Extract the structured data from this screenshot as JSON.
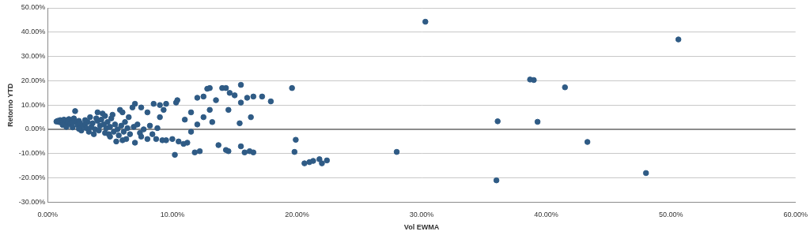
{
  "chart_data": {
    "type": "scatter",
    "x_label": "Vol EWMA",
    "y_label": "Retorno YTD",
    "color": "#2f5b85",
    "marker": "circle",
    "grid": true,
    "xlim": [
      0,
      60
    ],
    "ylim": [
      -30,
      50
    ],
    "xticks": [
      {
        "value": 0,
        "label": "0.00%"
      },
      {
        "value": 10,
        "label": "10.00%"
      },
      {
        "value": 20,
        "label": "20.00%"
      },
      {
        "value": 30,
        "label": "30.00%"
      },
      {
        "value": 40,
        "label": "40.00%"
      },
      {
        "value": 50,
        "label": "50.00%"
      },
      {
        "value": 60,
        "label": "60.00%"
      }
    ],
    "yticks": [
      {
        "value": -30,
        "label": "-30.00%"
      },
      {
        "value": -20,
        "label": "-20.00%"
      },
      {
        "value": -10,
        "label": "-10.00%"
      },
      {
        "value": 0,
        "label": "0.00%"
      },
      {
        "value": 10,
        "label": "10.00%"
      },
      {
        "value": 20,
        "label": "20.00%"
      },
      {
        "value": 30,
        "label": "30.00%"
      },
      {
        "value": 40,
        "label": "40.00%"
      },
      {
        "value": 50,
        "label": "50.00%"
      }
    ],
    "x": [
      30.3,
      50.6,
      38.7,
      39.0,
      41.5,
      36.1,
      39.3,
      43.3,
      36.0,
      48.0,
      28.0,
      19.6,
      19.9,
      19.8,
      21.0,
      21.3,
      21.8,
      22.0,
      22.4,
      20.6,
      12.5,
      12.8,
      13.0,
      13.5,
      14.0,
      14.3,
      14.6,
      15.0,
      15.5,
      16.0,
      16.5,
      17.2,
      17.9,
      15.5,
      14.5,
      16.3,
      15.4,
      13.7,
      14.3,
      14.5,
      15.5,
      15.8,
      16.5,
      16.2,
      12.2,
      11.8,
      11.2,
      10.9,
      10.5,
      10.2,
      9.5,
      10.3,
      10.4,
      11.5,
      12.0,
      11.0,
      12.5,
      13.0,
      12.0,
      13.2,
      11.5,
      10.0,
      9.0,
      9.3,
      9.5,
      9.0,
      8.5,
      8.0,
      7.5,
      7.0,
      6.8,
      7.5,
      8.0,
      8.7,
      9.2,
      7.0,
      6.3,
      5.5,
      5.2,
      5.8,
      6.0,
      0.8,
      0.9,
      1.0,
      1.1,
      1.2,
      1.3,
      1.4,
      1.5,
      1.6,
      1.7,
      1.8,
      1.9,
      2.0,
      2.1,
      2.2,
      2.3,
      2.4,
      2.5,
      2.6,
      2.8,
      3.0,
      3.1,
      3.2,
      3.3,
      3.5,
      3.6,
      3.8,
      4.0,
      4.1,
      4.2,
      4.3,
      4.4,
      4.5,
      4.6,
      4.7,
      4.8,
      4.9,
      5.0,
      5.1,
      5.3,
      5.4,
      5.6,
      5.7,
      5.9,
      6.1,
      6.2,
      6.4,
      6.5,
      6.6,
      6.9,
      7.2,
      7.4,
      7.7,
      8.2,
      8.4,
      8.8,
      3.4,
      3.7,
      2.7,
      1.2,
      0.7,
      1.5,
      2.0,
      3.9,
      4.0,
      5.0,
      6.0,
      4.6,
      3.0,
      2.5
    ],
    "values": [
      44.3,
      37.0,
      20.5,
      20.3,
      17.3,
      3.3,
      3.1,
      -5.2,
      -21.0,
      -18.0,
      -9.3,
      17.0,
      -4.3,
      -9.3,
      -13.5,
      -13.0,
      -12.3,
      -14.0,
      -12.8,
      -14.0,
      13.5,
      16.7,
      17.0,
      12.0,
      17.0,
      17.0,
      15.0,
      14.0,
      18.3,
      13.0,
      13.5,
      13.5,
      11.5,
      11.0,
      8.0,
      5.0,
      2.5,
      -6.5,
      -8.5,
      -9.0,
      -7.0,
      -9.5,
      -9.5,
      -9.0,
      -9.0,
      -9.5,
      -5.5,
      -6.0,
      -5.0,
      -10.5,
      -4.5,
      11.0,
      12.0,
      7.0,
      13.0,
      4.0,
      5.0,
      8.0,
      2.0,
      3.0,
      -1.0,
      -4.0,
      5.0,
      8.0,
      10.5,
      10.0,
      10.5,
      7.0,
      9.0,
      10.5,
      9.0,
      -3.0,
      -4.0,
      -4.0,
      -4.5,
      -5.5,
      -4.0,
      -5.0,
      6.0,
      8.0,
      7.0,
      3.5,
      3.0,
      3.8,
      2.8,
      3.3,
      4.0,
      2.5,
      3.6,
      3.0,
      4.2,
      2.2,
      3.4,
      2.8,
      4.5,
      7.5,
      3.0,
      1.8,
      3.5,
      2.5,
      1.5,
      2.0,
      0.5,
      3.0,
      -1.0,
      1.0,
      2.5,
      0.0,
      3.5,
      -0.5,
      1.5,
      4.0,
      6.5,
      2.0,
      -1.5,
      0.5,
      3.0,
      -2.0,
      1.0,
      4.5,
      -1.0,
      2.0,
      0.0,
      -2.5,
      1.5,
      -1.0,
      3.0,
      0.5,
      5.0,
      -2.0,
      1.0,
      2.0,
      -1.5,
      0.0,
      1.5,
      -2.0,
      0.5,
      5.0,
      -2.0,
      -0.5,
      1.8,
      3.2,
      1.0,
      0.8,
      4.5,
      7.0,
      -3.0,
      -4.5,
      5.5,
      3.8,
      0.2
    ]
  }
}
